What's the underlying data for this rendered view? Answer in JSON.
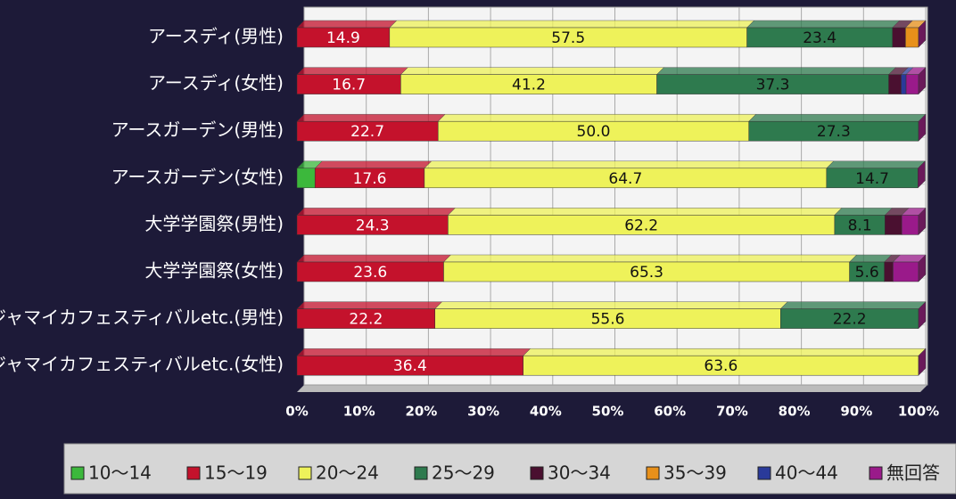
{
  "chart_data": {
    "type": "stacked-bar-horizontal",
    "categories": [
      "アースディ(男性)",
      "アースディ(女性)",
      "アースガーデン(男性)",
      "アースガーデン(女性)",
      "大学学園祭(男性)",
      "大学学園祭(女性)",
      "ジャマイカフェスティバルetc.(男性)",
      "ジャマイカフェスティバルetc.(女性)"
    ],
    "series": [
      {
        "name": "10～14",
        "color": "#3cb83c",
        "values": [
          0,
          0,
          0,
          2.9,
          0,
          0,
          0,
          0
        ],
        "value_labels": [
          null,
          null,
          null,
          null,
          null,
          null,
          null,
          null
        ]
      },
      {
        "name": "15～19",
        "color": "#c4122c",
        "values": [
          14.9,
          16.7,
          22.7,
          17.6,
          24.3,
          23.6,
          22.2,
          36.4
        ],
        "value_labels": [
          "14.9",
          "16.7",
          "22.7",
          "17.6",
          "24.3",
          "23.6",
          "22.2",
          "36.4"
        ]
      },
      {
        "name": "20～24",
        "color": "#eef25a",
        "values": [
          57.5,
          41.2,
          50,
          64.7,
          62.2,
          65.3,
          55.6,
          63.6
        ],
        "value_labels": [
          "57.5",
          "41.2",
          "50.0",
          "64.7",
          "62.2",
          "65.3",
          "55.6",
          "63.6"
        ]
      },
      {
        "name": "25～29",
        "color": "#2e7a4e",
        "values": [
          23.4,
          37.3,
          27.3,
          14.7,
          8.1,
          5.6,
          22.2,
          0
        ],
        "value_labels": [
          "23.4",
          "37.3",
          "27.3",
          "14.7",
          "8.1",
          "5.6",
          "22.2",
          null
        ]
      },
      {
        "name": "30～34",
        "color": "#4a1030",
        "values": [
          2.1,
          2,
          0,
          0,
          2.7,
          1.4,
          0,
          0
        ],
        "value_labels": [
          null,
          null,
          null,
          null,
          null,
          null,
          null,
          null
        ]
      },
      {
        "name": "35～39",
        "color": "#e8901a",
        "values": [
          2.1,
          0,
          0,
          0,
          0,
          0,
          0,
          0
        ],
        "value_labels": [
          null,
          null,
          null,
          null,
          null,
          null,
          null,
          null
        ]
      },
      {
        "name": "40～44",
        "color": "#2a3a9a",
        "values": [
          0,
          0.8,
          0,
          0,
          0,
          0,
          0,
          0
        ],
        "value_labels": [
          null,
          null,
          null,
          null,
          null,
          null,
          null,
          null
        ]
      },
      {
        "name": "無回答",
        "color": "#9a1a8a",
        "values": [
          0,
          2,
          0,
          0,
          2.7,
          4.1,
          0,
          0
        ],
        "value_labels": [
          null,
          null,
          null,
          null,
          null,
          null,
          null,
          null
        ]
      }
    ],
    "xlim": [
      0,
      100
    ],
    "xticks": [
      {
        "value": 0,
        "label": "0%"
      },
      {
        "value": 10,
        "label": "10%"
      },
      {
        "value": 20,
        "label": "20%"
      },
      {
        "value": 30,
        "label": "30%"
      },
      {
        "value": 40,
        "label": "40%"
      },
      {
        "value": 50,
        "label": "50%"
      },
      {
        "value": 60,
        "label": "60%"
      },
      {
        "value": 70,
        "label": "70%"
      },
      {
        "value": 80,
        "label": "80%"
      },
      {
        "value": 90,
        "label": "90%"
      },
      {
        "value": 100,
        "label": "100%"
      }
    ],
    "grid": true,
    "legend": "bottom"
  }
}
